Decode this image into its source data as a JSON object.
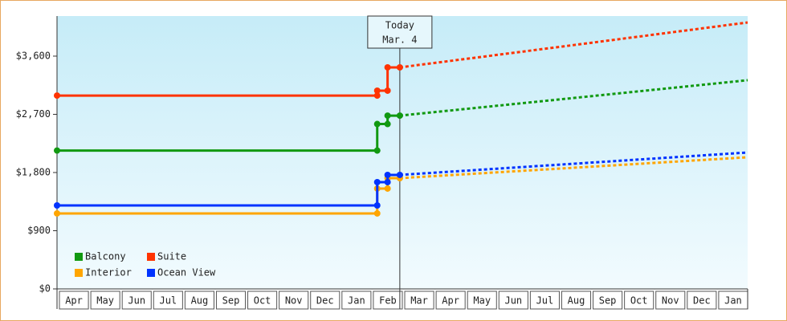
{
  "chart_data": {
    "type": "line",
    "categories": [
      "Apr",
      "May",
      "Jun",
      "Jul",
      "Aug",
      "Sep",
      "Oct",
      "Nov",
      "Dec",
      "Jan",
      "Feb",
      "Mar",
      "Apr",
      "May",
      "Jun",
      "Jul",
      "Aug",
      "Sep",
      "Oct",
      "Nov",
      "Dec",
      "Jan"
    ],
    "xlim": [
      0,
      22
    ],
    "ylim": [
      0,
      4220
    ],
    "yticks": [
      {
        "value": 0,
        "label": "$0"
      },
      {
        "value": 900,
        "label": "$900"
      },
      {
        "value": 1800,
        "label": "$1,800"
      },
      {
        "value": 2700,
        "label": "$2,700"
      },
      {
        "value": 3600,
        "label": "$3,600"
      }
    ],
    "today": {
      "x": 10.92,
      "label": [
        "Today",
        "Mar. 4"
      ]
    },
    "legend": "bottom-left",
    "series": [
      {
        "name": "Balcony",
        "color": "#119911",
        "x": [
          0,
          10.2,
          10.2,
          10.53,
          10.53,
          10.92
        ],
        "values": [
          2140,
          2140,
          2550,
          2550,
          2680,
          2680
        ],
        "forecast_x": [
          10.92,
          16.5,
          22
        ],
        "forecast_values": [
          2680,
          2955,
          3228
        ]
      },
      {
        "name": "Suite",
        "color": "#ff3300",
        "x": [
          0,
          10.2,
          10.2,
          10.53,
          10.53,
          10.92
        ],
        "values": [
          2990,
          2990,
          3066,
          3066,
          3426,
          3426
        ],
        "forecast_x": [
          10.92,
          16.5,
          22
        ],
        "forecast_values": [
          3426,
          3774,
          4121
        ]
      },
      {
        "name": "Interior",
        "color": "#ffa500",
        "x": [
          0,
          10.2,
          10.2,
          10.53,
          10.53,
          10.92
        ],
        "values": [
          1167,
          1167,
          1552,
          1552,
          1713,
          1713
        ],
        "forecast_x": [
          10.92,
          16.5,
          22
        ],
        "forecast_values": [
          1713,
          1875,
          2036
        ]
      },
      {
        "name": "Ocean View",
        "color": "#0033ff",
        "x": [
          0,
          10.2,
          10.2,
          10.53,
          10.53,
          10.92
        ],
        "values": [
          1291,
          1291,
          1651,
          1651,
          1763,
          1763
        ],
        "forecast_x": [
          10.92,
          16.5,
          22
        ],
        "forecast_values": [
          1763,
          1937,
          2110
        ]
      }
    ]
  }
}
